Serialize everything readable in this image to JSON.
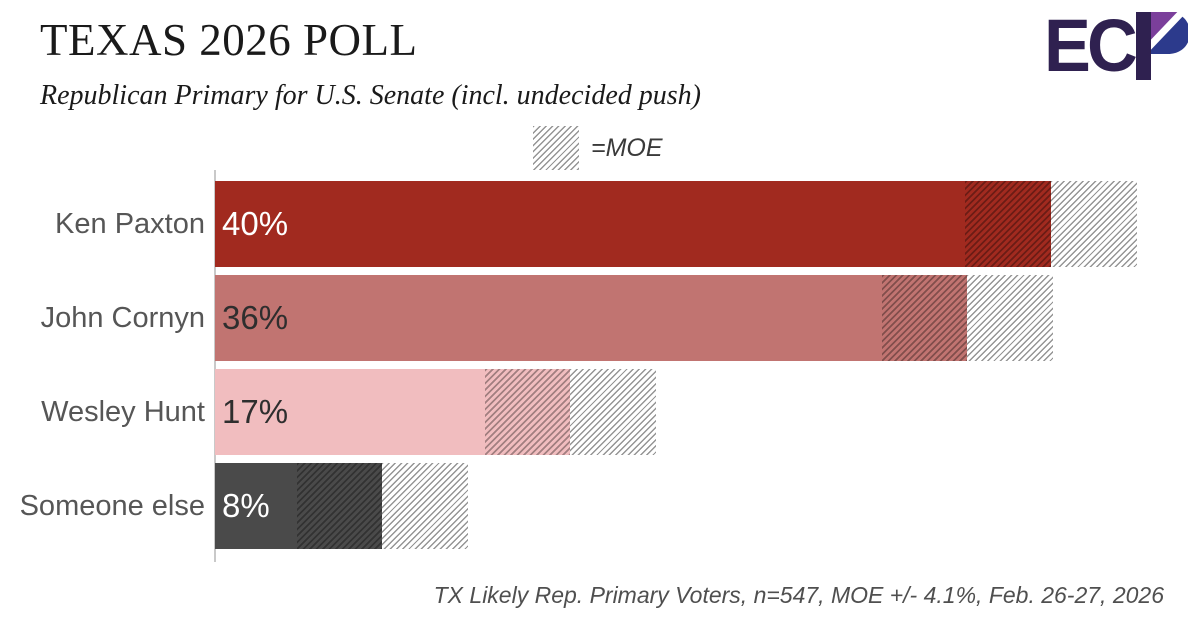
{
  "header": {
    "title": "TEXAS 2026 POLL",
    "subtitle": "Republican Primary for U.S. Senate (incl. undecided push)",
    "logo": {
      "letters": "EC",
      "letters_color": "#2F2150",
      "p_stem_color": "#2F2150",
      "p_purple_color": "#7B3F9B",
      "p_navy_color": "#2C3A8C"
    }
  },
  "legend": {
    "label": "=MOE"
  },
  "chart_data": {
    "type": "bar",
    "orientation": "horizontal",
    "unit": "%",
    "moe": 4.1,
    "categories": [
      "Ken Paxton",
      "John Cornyn",
      "Wesley Hunt",
      "Someone else"
    ],
    "values": [
      40,
      36,
      17,
      8
    ],
    "series": [
      {
        "label": "Ken Paxton",
        "value": 40,
        "value_label": "40%",
        "bar_color": "#A12A1F",
        "value_text_color": "#ffffff"
      },
      {
        "label": "John Cornyn",
        "value": 36,
        "value_label": "36%",
        "bar_color": "#C17471",
        "value_text_color": "#2e2e2e"
      },
      {
        "label": "Wesley Hunt",
        "value": 17,
        "value_label": "17%",
        "bar_color": "#F1BDBF",
        "value_text_color": "#2e2e2e"
      },
      {
        "label": "Someone else",
        "value": 8,
        "value_label": "8%",
        "bar_color": "#4A4A4A",
        "value_text_color": "#ffffff"
      }
    ],
    "annotations": [
      "MOE band shown hatched on each bar: darker hatch inside value, gray hatch beyond value"
    ],
    "xlim": [
      0,
      47
    ],
    "grid": false,
    "legend_position": "top-center"
  },
  "footer": {
    "note": "TX Likely Rep. Primary Voters, n=547, MOE +/- 4.1%, Feb. 26-27, 2026"
  }
}
